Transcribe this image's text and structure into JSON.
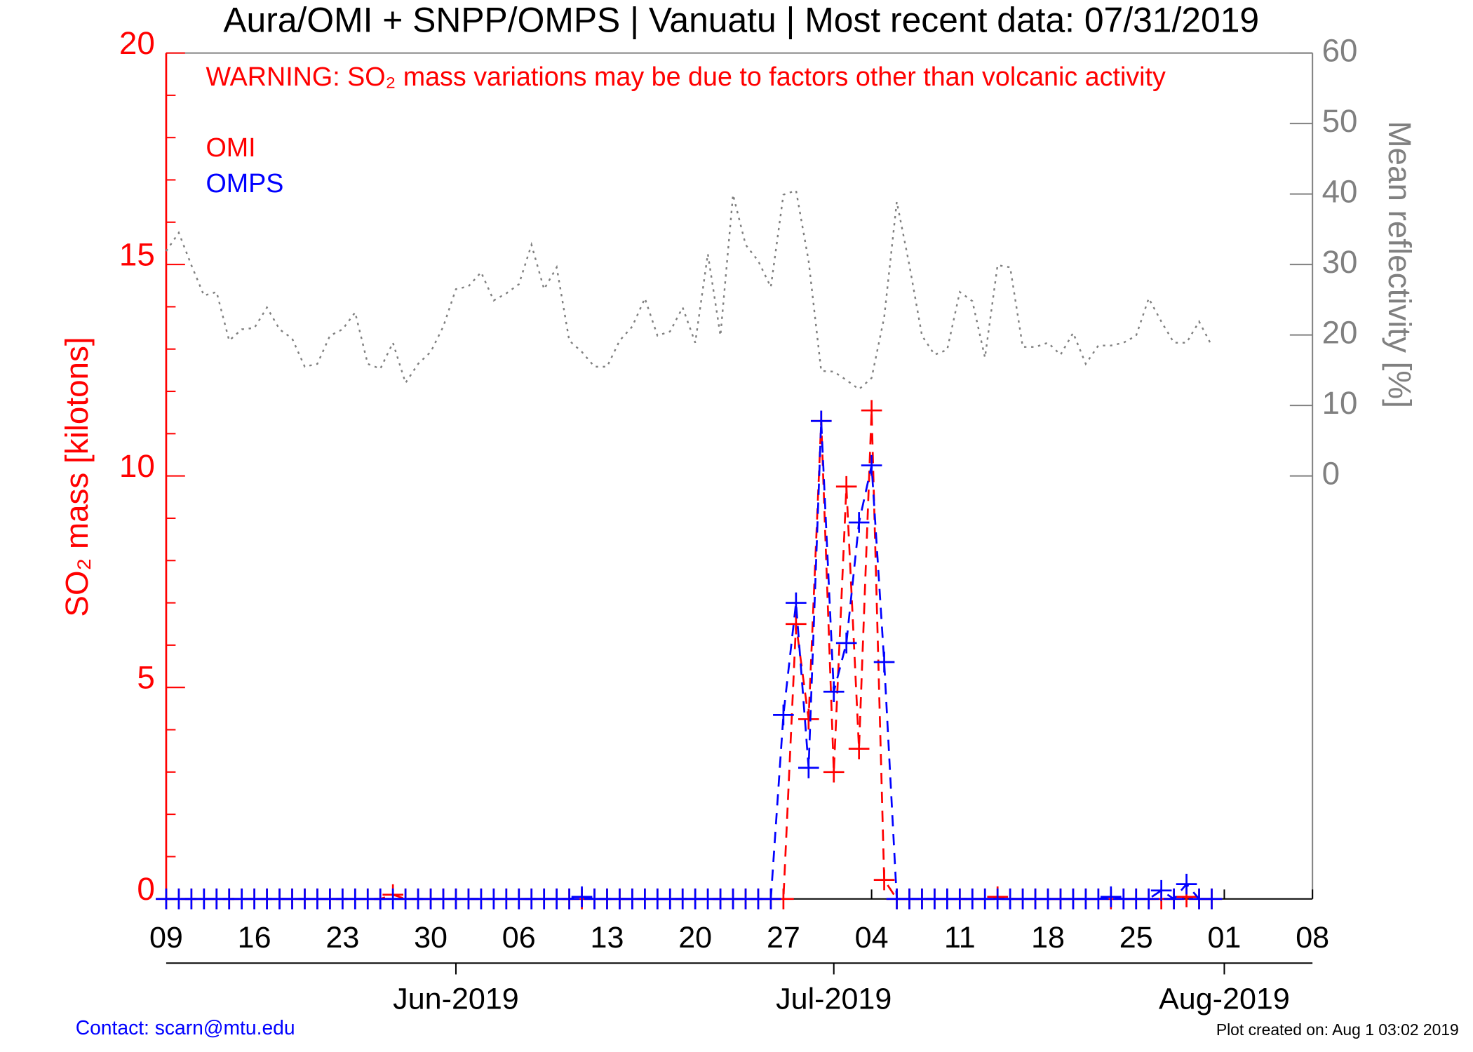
{
  "chart_data": {
    "type": "line",
    "title": "Aura/OMI + SNPP/OMPS | Vanuatu | Most recent data: 07/31/2019",
    "annotation": "WARNING: SO₂ mass variations may be due to factors other than volcanic activity",
    "y_label": "SO₂ mass [kilotons]",
    "y2_label": "Mean reflectivity [%]",
    "footer_left": "Contact: scarn@mtu.edu",
    "footer_right": "Plot created on: Aug  1 03:02 2019",
    "x": [
      "2019-05-09",
      "2019-05-10",
      "2019-05-11",
      "2019-05-12",
      "2019-05-13",
      "2019-05-14",
      "2019-05-15",
      "2019-05-16",
      "2019-05-17",
      "2019-05-18",
      "2019-05-19",
      "2019-05-20",
      "2019-05-21",
      "2019-05-22",
      "2019-05-23",
      "2019-05-24",
      "2019-05-25",
      "2019-05-26",
      "2019-05-27",
      "2019-05-28",
      "2019-05-29",
      "2019-05-30",
      "2019-05-31",
      "2019-06-01",
      "2019-06-02",
      "2019-06-03",
      "2019-06-04",
      "2019-06-05",
      "2019-06-06",
      "2019-06-07",
      "2019-06-08",
      "2019-06-09",
      "2019-06-10",
      "2019-06-11",
      "2019-06-12",
      "2019-06-13",
      "2019-06-14",
      "2019-06-15",
      "2019-06-16",
      "2019-06-17",
      "2019-06-18",
      "2019-06-19",
      "2019-06-20",
      "2019-06-21",
      "2019-06-22",
      "2019-06-23",
      "2019-06-24",
      "2019-06-25",
      "2019-06-26",
      "2019-06-27",
      "2019-06-28",
      "2019-06-29",
      "2019-06-30",
      "2019-07-01",
      "2019-07-02",
      "2019-07-03",
      "2019-07-04",
      "2019-07-05",
      "2019-07-06",
      "2019-07-07",
      "2019-07-08",
      "2019-07-09",
      "2019-07-10",
      "2019-07-11",
      "2019-07-12",
      "2019-07-13",
      "2019-07-14",
      "2019-07-15",
      "2019-07-16",
      "2019-07-17",
      "2019-07-18",
      "2019-07-19",
      "2019-07-20",
      "2019-07-21",
      "2019-07-22",
      "2019-07-23",
      "2019-07-24",
      "2019-07-25",
      "2019-07-26",
      "2019-07-27",
      "2019-07-28",
      "2019-07-29",
      "2019-07-30",
      "2019-07-31"
    ],
    "series": [
      {
        "name": "OMI",
        "color": "#ff0000",
        "marker": "+",
        "dash": "dashed",
        "values": [
          0,
          0,
          0,
          0,
          0,
          0,
          0,
          0,
          0,
          0,
          0,
          0,
          0,
          0,
          0,
          0,
          0,
          0,
          0.1,
          0,
          0,
          0,
          0,
          0,
          0,
          0,
          0,
          0,
          0,
          0,
          0,
          0,
          0,
          0,
          0,
          0,
          0,
          0,
          0,
          0,
          0,
          0,
          0,
          0,
          0,
          0,
          0,
          0,
          0,
          0,
          6.5,
          4.25,
          11.3,
          3.0,
          9.75,
          3.55,
          11.55,
          0.45,
          0,
          0,
          0,
          0,
          0,
          0,
          0,
          0,
          0.05,
          0,
          0,
          0,
          0,
          0,
          0,
          0,
          0,
          0,
          0,
          0,
          0,
          0,
          0,
          0.05,
          0,
          0
        ]
      },
      {
        "name": "OMPS",
        "color": "#0000ff",
        "marker": "+",
        "dash": "dashed",
        "values": [
          0,
          0,
          0,
          0,
          0,
          0,
          0,
          0,
          0,
          0,
          0,
          0,
          0,
          0,
          0,
          0,
          0,
          0,
          0,
          0,
          0,
          0,
          0,
          0,
          0,
          0,
          0,
          0,
          0,
          0,
          0,
          0,
          0,
          0.05,
          0,
          0,
          0,
          0,
          0,
          0,
          0,
          0,
          0,
          0,
          0,
          0,
          0,
          0,
          0,
          4.35,
          7.0,
          3.1,
          11.3,
          4.9,
          6.05,
          8.9,
          10.25,
          5.6,
          0,
          0,
          0,
          0,
          0,
          0,
          0,
          0,
          0,
          0,
          0,
          0,
          0,
          0,
          0,
          0,
          0,
          0.05,
          0,
          0,
          0,
          0.2,
          0,
          0.35,
          0,
          0
        ]
      },
      {
        "name": "Mean reflectivity",
        "color": "#808080",
        "dash": "dotted",
        "axis": "y2",
        "values": [
          31.9,
          34.5,
          29.9,
          25.6,
          26.1,
          19.2,
          20.8,
          21,
          23.9,
          20.8,
          19.5,
          15.5,
          15.9,
          19.9,
          20.8,
          23.2,
          15.9,
          15.2,
          18.9,
          13.2,
          15.9,
          17.6,
          21.2,
          26.5,
          26.9,
          28.9,
          24.9,
          25.9,
          27.2,
          32.8,
          26.5,
          29.6,
          19.2,
          17.6,
          15.5,
          15.5,
          19.2,
          21.2,
          25.2,
          19.9,
          20.5,
          23.9,
          18.9,
          31.5,
          19.9,
          39.9,
          32.8,
          30.5,
          26.8,
          39.9,
          40.5,
          30.5,
          14.9,
          14.8,
          13.6,
          12.3,
          13.9,
          22.5,
          38.9,
          29.9,
          19.9,
          17.2,
          17.9,
          26.1,
          24.8,
          16.8,
          29.9,
          29.6,
          18.3,
          18.3,
          18.9,
          17.2,
          20.3,
          15.9,
          18.5,
          18.5,
          18.9,
          19.9,
          25.2,
          21.9,
          18.9,
          18.9,
          21.9,
          18.5
        ]
      }
    ],
    "xlim": [
      "2019-05-09",
      "2019-08-08"
    ],
    "xticks": [
      {
        "value": "2019-05-09",
        "label": "09"
      },
      {
        "value": "2019-05-16",
        "label": "16"
      },
      {
        "value": "2019-05-23",
        "label": "23"
      },
      {
        "value": "2019-05-30",
        "label": "30"
      },
      {
        "value": "2019-06-06",
        "label": "06"
      },
      {
        "value": "2019-06-13",
        "label": "13"
      },
      {
        "value": "2019-06-20",
        "label": "20"
      },
      {
        "value": "2019-06-27",
        "label": "27"
      },
      {
        "value": "2019-07-04",
        "label": "04"
      },
      {
        "value": "2019-07-11",
        "label": "11"
      },
      {
        "value": "2019-07-18",
        "label": "18"
      },
      {
        "value": "2019-07-25",
        "label": "25"
      },
      {
        "value": "2019-08-01",
        "label": "01"
      },
      {
        "value": "2019-08-08",
        "label": "08"
      }
    ],
    "month_ticks": [
      {
        "value": "2019-06-01",
        "label": "Jun-2019"
      },
      {
        "value": "2019-07-01",
        "label": "Jul-2019"
      },
      {
        "value": "2019-08-01",
        "label": "Aug-2019"
      }
    ],
    "ylim": [
      0,
      20
    ],
    "yticks": [
      0,
      5,
      10,
      15,
      20
    ],
    "y_color": "#ff0000",
    "y2lim": [
      -60,
      60
    ],
    "y2ticks": [
      0,
      10,
      20,
      30,
      40,
      50,
      60
    ],
    "y2_color": "#808080"
  }
}
